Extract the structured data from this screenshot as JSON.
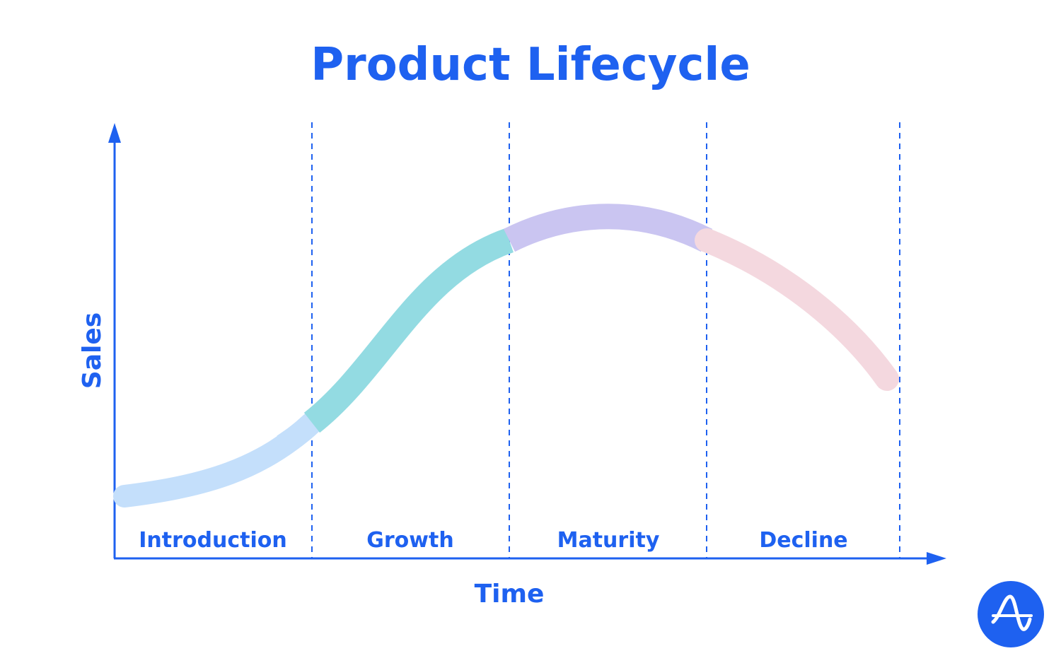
{
  "title": "Product Lifecycle",
  "axes": {
    "x_label": "Time",
    "y_label": "Sales"
  },
  "stages": [
    {
      "name": "Introduction",
      "color": "#c4dffb"
    },
    {
      "name": "Growth",
      "color": "#93dbe2"
    },
    {
      "name": "Maturity",
      "color": "#cac5f1"
    },
    {
      "name": "Decline",
      "color": "#f4d8df"
    }
  ],
  "colors": {
    "accent": "#1e61f0"
  },
  "logo": {
    "icon": "amplitude-logo-icon"
  }
}
